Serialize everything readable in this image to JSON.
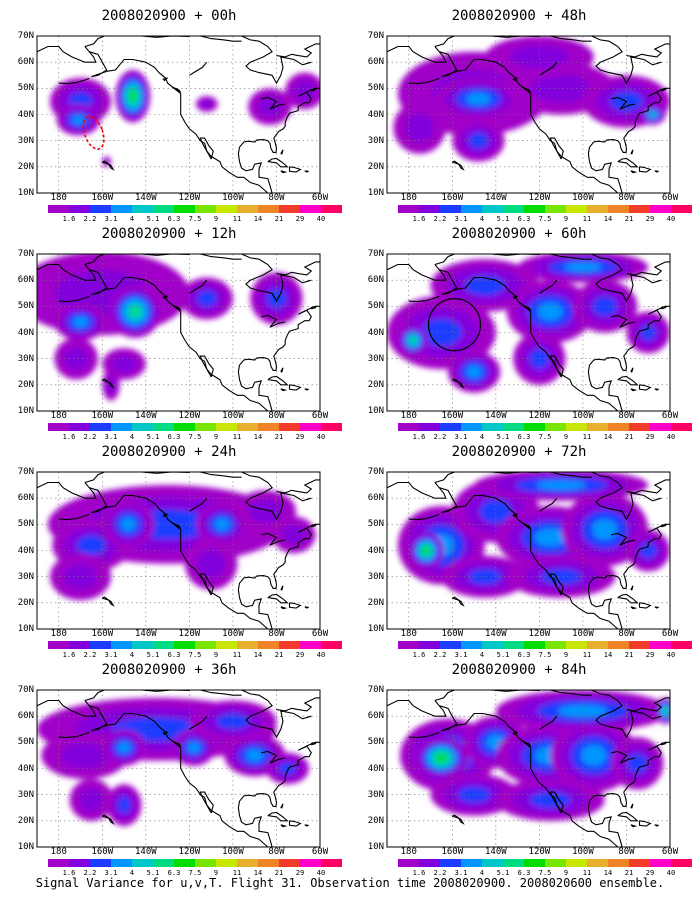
{
  "chart_data": {
    "type": "heatmap",
    "init_time": "2008020900",
    "lat_ticks": [
      "70N",
      "60N",
      "50N",
      "40N",
      "30N",
      "20N",
      "10N"
    ],
    "lon_ticks": [
      "180",
      "160W",
      "140W",
      "120W",
      "100W",
      "80W",
      "60W"
    ],
    "colorbar": {
      "levels": [
        "1.6",
        "2.2",
        "3.1",
        "4",
        "5.1",
        "6.3",
        "7.5",
        "9",
        "11",
        "14",
        "21",
        "29",
        "40"
      ],
      "colors": [
        "#a000c8",
        "#8200dc",
        "#1e3cff",
        "#0096ff",
        "#00c8c8",
        "#00dc82",
        "#00dc00",
        "#78e600",
        "#c8e600",
        "#e6af2d",
        "#f08228",
        "#f03c28",
        "#ff00c8"
      ]
    },
    "panels": [
      {
        "title": "2008020900 + 00h",
        "lead": "00h",
        "blobs": [
          [
            -170,
            45,
            14,
            9,
            2
          ],
          [
            -146,
            47,
            8,
            10,
            6
          ],
          [
            -171,
            38,
            10,
            6,
            3
          ],
          [
            -112,
            44,
            5,
            3,
            1
          ],
          [
            -83,
            43,
            10,
            7,
            1
          ],
          [
            -67,
            49,
            9,
            7,
            1
          ],
          [
            -158,
            22,
            2,
            2,
            1
          ]
        ],
        "marker": {
          "type": "dashed-outline",
          "color": "#ff0000",
          "lon": -164,
          "lat": 33
        }
      },
      {
        "title": "2008020900 + 12h",
        "lead": "12h",
        "blobs": [
          [
            -160,
            55,
            40,
            16,
            1
          ],
          [
            -170,
            44,
            12,
            7,
            3
          ],
          [
            -145,
            48,
            12,
            10,
            5
          ],
          [
            -112,
            53,
            12,
            8,
            2
          ],
          [
            -80,
            53,
            12,
            10,
            2
          ],
          [
            -150,
            28,
            10,
            6,
            1
          ],
          [
            -156,
            20,
            4,
            6,
            1
          ],
          [
            -172,
            30,
            10,
            8,
            1
          ]
        ]
      },
      {
        "title": "2008020900 + 24h",
        "lead": "24h",
        "blobs": [
          [
            -130,
            50,
            55,
            15,
            2
          ],
          [
            -165,
            42,
            18,
            10,
            2
          ],
          [
            -148,
            50,
            12,
            9,
            3
          ],
          [
            -105,
            50,
            12,
            8,
            3
          ],
          [
            -170,
            30,
            14,
            9,
            1
          ],
          [
            -110,
            35,
            12,
            10,
            1
          ],
          [
            -85,
            55,
            14,
            8,
            1
          ],
          [
            -72,
            46,
            10,
            7,
            1
          ]
        ]
      },
      {
        "title": "2008020900 + 36h",
        "lead": "36h",
        "blobs": [
          [
            -135,
            55,
            55,
            12,
            2
          ],
          [
            -168,
            45,
            20,
            9,
            1
          ],
          [
            -150,
            48,
            10,
            7,
            3
          ],
          [
            -118,
            48,
            10,
            7,
            3
          ],
          [
            -90,
            45,
            14,
            8,
            3
          ],
          [
            -75,
            40,
            10,
            6,
            2
          ],
          [
            -165,
            28,
            10,
            8,
            1
          ],
          [
            -150,
            26,
            8,
            8,
            2
          ],
          [
            -100,
            58,
            20,
            8,
            2
          ]
        ]
      },
      {
        "title": "2008020900 + 48h",
        "lead": "48h",
        "blobs": [
          [
            -150,
            48,
            35,
            16,
            1
          ],
          [
            -148,
            46,
            20,
            8,
            3
          ],
          [
            -110,
            50,
            25,
            10,
            1
          ],
          [
            -80,
            45,
            20,
            10,
            2
          ],
          [
            -68,
            40,
            6,
            4,
            4
          ],
          [
            -148,
            30,
            12,
            8,
            2
          ],
          [
            -175,
            35,
            12,
            10,
            1
          ],
          [
            -120,
            62,
            25,
            8,
            1
          ]
        ]
      },
      {
        "title": "2008020900 + 60h",
        "lead": "60h",
        "blobs": [
          [
            -165,
            40,
            25,
            14,
            2
          ],
          [
            -178,
            37,
            7,
            6,
            5
          ],
          [
            -145,
            58,
            25,
            10,
            2
          ],
          [
            -115,
            48,
            20,
            12,
            3
          ],
          [
            -90,
            50,
            15,
            10,
            2
          ],
          [
            -70,
            40,
            10,
            8,
            2
          ],
          [
            -150,
            25,
            12,
            8,
            3
          ],
          [
            -120,
            30,
            12,
            10,
            2
          ],
          [
            -100,
            65,
            30,
            6,
            3
          ]
        ],
        "marker": {
          "type": "circle",
          "color": "#000000",
          "lon": -159,
          "lat": 43
        }
      },
      {
        "title": "2008020900 + 72h",
        "lead": "72h",
        "blobs": [
          [
            -165,
            42,
            20,
            15,
            3
          ],
          [
            -172,
            40,
            8,
            7,
            6
          ],
          [
            -140,
            55,
            20,
            12,
            2
          ],
          [
            -115,
            45,
            25,
            12,
            3
          ],
          [
            -90,
            48,
            20,
            14,
            3
          ],
          [
            -70,
            40,
            10,
            8,
            2
          ],
          [
            -145,
            30,
            20,
            8,
            2
          ],
          [
            -110,
            30,
            25,
            8,
            2
          ],
          [
            -110,
            65,
            40,
            6,
            3
          ]
        ]
      },
      {
        "title": "2008020900 + 84h",
        "lead": "84h",
        "blobs": [
          [
            -162,
            45,
            22,
            14,
            3
          ],
          [
            -165,
            44,
            12,
            8,
            6
          ],
          [
            -140,
            50,
            15,
            10,
            3
          ],
          [
            -115,
            45,
            25,
            12,
            3
          ],
          [
            -95,
            45,
            20,
            14,
            3
          ],
          [
            -75,
            42,
            12,
            10,
            2
          ],
          [
            -150,
            30,
            20,
            8,
            2
          ],
          [
            -115,
            28,
            25,
            8,
            2
          ],
          [
            -100,
            62,
            40,
            8,
            3
          ],
          [
            -62,
            62,
            5,
            5,
            5
          ]
        ]
      }
    ]
  },
  "caption": "Signal Variance for u,v,T. Flight 31. Observation time 2008020900. 2008020600 ensemble."
}
